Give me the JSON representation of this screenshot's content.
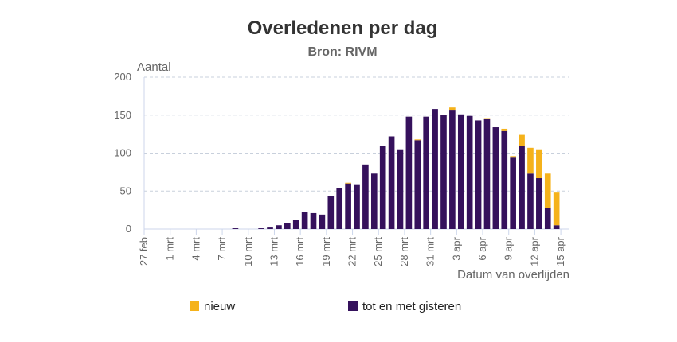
{
  "chart_data": {
    "type": "stacked-bar",
    "title": "Overledenen per dag",
    "subtitle": "Bron: RIVM",
    "y_label": "Aantal",
    "x_label": "Datum van overlijden",
    "categories": [
      "27 feb",
      null,
      null,
      "1 mrt",
      null,
      null,
      "4 mrt",
      null,
      null,
      "7 mrt",
      null,
      null,
      "10 mrt",
      null,
      null,
      "13 mrt",
      null,
      null,
      "16 mrt",
      null,
      null,
      "19 mrt",
      null,
      null,
      "22 mrt",
      null,
      null,
      "25 mrt",
      null,
      null,
      "28 mrt",
      null,
      null,
      "31 mrt",
      null,
      null,
      "3 apr",
      null,
      null,
      "6 apr",
      null,
      null,
      "9 apr",
      null,
      null,
      "12 apr",
      null,
      null,
      "15 apr"
    ],
    "series": [
      {
        "name": "nieuw",
        "color": "#f5b21b",
        "values": [
          0,
          0,
          0,
          0,
          0,
          0,
          0,
          0,
          0,
          0,
          0,
          0,
          0,
          0,
          0,
          0,
          0,
          0,
          0,
          0,
          0,
          0,
          0,
          1,
          0,
          0,
          0,
          0,
          0,
          0,
          0,
          1,
          0,
          0,
          0,
          3,
          0,
          0,
          0,
          1,
          0,
          3,
          2,
          15,
          34,
          38,
          45,
          43,
          null
        ]
      },
      {
        "name": "tot en met gisteren",
        "color": "#35115c",
        "values": [
          0,
          0,
          0,
          0,
          0,
          0,
          0,
          0,
          0,
          0,
          1,
          0,
          0,
          1,
          2,
          5,
          8,
          12,
          22,
          21,
          19,
          43,
          54,
          60,
          59,
          85,
          73,
          109,
          122,
          105,
          148,
          117,
          148,
          158,
          150,
          157,
          151,
          149,
          143,
          145,
          134,
          129,
          94,
          109,
          73,
          67,
          28,
          5,
          null
        ]
      }
    ],
    "ylim": [
      0,
      200
    ],
    "yticks": [
      0,
      50,
      100,
      150,
      200
    ],
    "grid": true
  }
}
